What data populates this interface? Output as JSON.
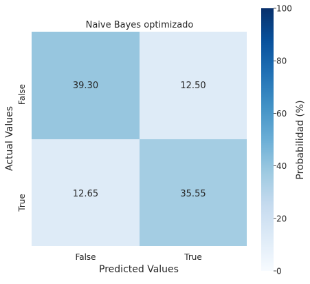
{
  "chart_data": {
    "type": "heatmap",
    "title": "Naive Bayes optimizado",
    "xlabel": "Predicted Values",
    "ylabel": "Actual Values",
    "x_categories": [
      "False",
      "True"
    ],
    "y_categories": [
      "False",
      "True"
    ],
    "values": [
      [
        39.3,
        12.5
      ],
      [
        12.65,
        35.55
      ]
    ],
    "value_labels": [
      [
        "39.30",
        "12.50"
      ],
      [
        "12.65",
        "35.55"
      ]
    ],
    "colorbar": {
      "label": "Probabilidad (%)",
      "range": [
        0,
        100
      ],
      "ticks": [
        "0",
        "20",
        "40",
        "60",
        "80",
        "100"
      ],
      "colormap": "Blues"
    }
  }
}
